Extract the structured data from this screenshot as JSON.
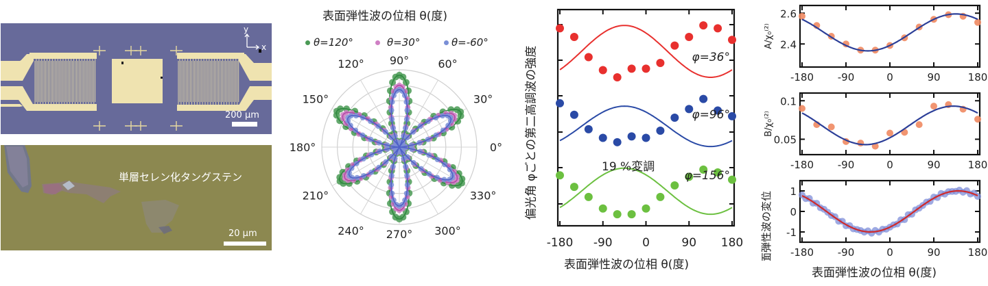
{
  "panels": {
    "device_photo": {
      "axes_labels": {
        "y": "y",
        "x": "x"
      },
      "scale_bar": "200 μm"
    },
    "flake_photo": {
      "material_label": "単層セレン化タングステン",
      "scale_bar": "20 μm"
    }
  },
  "colors": {
    "green": "#4a9a55",
    "pink": "#cf7fc4",
    "blue_dot": "#7a8fd6",
    "red": "#e8302e",
    "navy": "#2a4aa6",
    "lime": "#6cc040",
    "salmon": "#f08a62",
    "fit_blue": "#2c3f98",
    "fit_red": "#d02a2a"
  },
  "chart_data": [
    {
      "type": "polar",
      "title": "表面弾性波の位相 θ(度)",
      "legend": [
        {
          "label": "θ=120°",
          "color": "#4a9a55"
        },
        {
          "label": "θ=30°",
          "color": "#cf7fc4"
        },
        {
          "label": "θ=-60°",
          "color": "#7a8fd6"
        }
      ],
      "angle_ticks": [
        "0°",
        "30°",
        "60°",
        "90°",
        "120°",
        "150°",
        "180°",
        "210°",
        "240°",
        "270°",
        "300°",
        "330°"
      ],
      "lobe_directions_deg": [
        90,
        150,
        210,
        270,
        330,
        30
      ],
      "series_amplitude": [
        {
          "name": "θ=120°",
          "lobes": [
            1.0,
            1.0,
            0.95,
            1.0,
            1.0,
            0.98
          ]
        },
        {
          "name": "θ=30°",
          "lobes": [
            0.86,
            0.9,
            0.87,
            0.88,
            0.92,
            0.88
          ]
        },
        {
          "name": "θ=-60°",
          "lobes": [
            0.8,
            0.82,
            0.8,
            0.82,
            0.85,
            0.82
          ]
        }
      ],
      "radial_rings": 5
    },
    {
      "type": "scatter",
      "ylabel": "偏光角 φごとの第二高調波の強度",
      "xlabel": "表面弾性波の位相 θ(度)",
      "xlim": [
        -180,
        180
      ],
      "xticks": [
        "-180",
        "-90",
        "0",
        "90",
        "180"
      ],
      "annotation": "19 %変調",
      "x": [
        -180,
        -150,
        -120,
        -90,
        -60,
        -30,
        0,
        30,
        60,
        90,
        120,
        150,
        180
      ],
      "series": [
        {
          "name": "φ=36°",
          "label": "φ=36°",
          "color": "#e8302e",
          "values": [
            0.92,
            0.86,
            0.72,
            0.63,
            0.58,
            0.64,
            0.64,
            0.68,
            0.8,
            0.86,
            0.94,
            0.92,
            0.84
          ],
          "fit_offset": 0.76,
          "fit_amp": 0.18,
          "fit_phase": -45
        },
        {
          "name": "φ=96°",
          "label": "φ=96°",
          "color": "#2a4aa6",
          "values": [
            0.4,
            0.32,
            0.22,
            0.16,
            0.13,
            0.17,
            0.16,
            0.21,
            0.3,
            0.36,
            0.43,
            0.35,
            0.31
          ],
          "fit_offset": 0.24,
          "fit_amp": 0.14,
          "fit_phase": -45
        },
        {
          "name": "φ=156°",
          "label": "φ=156°",
          "color": "#6cc040",
          "values": [
            -0.1,
            -0.18,
            -0.25,
            -0.33,
            -0.37,
            -0.37,
            -0.33,
            -0.25,
            -0.17,
            -0.11,
            -0.06,
            -0.08,
            -0.13
          ],
          "fit_offset": -0.21,
          "fit_amp": 0.16,
          "fit_phase": -45
        }
      ],
      "ylim": [
        -0.45,
        1.05
      ]
    },
    {
      "type": "scatter",
      "ylabel": "A/χ₀⁽²⁾",
      "xlim": [
        -180,
        180
      ],
      "ylim": [
        2.25,
        2.65
      ],
      "yticks": [
        "2.4",
        "2.6"
      ],
      "xticks": [
        "-180",
        "-90",
        "0",
        "90",
        "180"
      ],
      "x": [
        -180,
        -150,
        -120,
        -90,
        -60,
        -30,
        0,
        30,
        60,
        90,
        120,
        150,
        180
      ],
      "values": [
        2.58,
        2.52,
        2.45,
        2.4,
        2.36,
        2.36,
        2.39,
        2.44,
        2.51,
        2.56,
        2.59,
        2.58,
        2.54
      ],
      "fit": {
        "offset": 2.475,
        "amp": 0.12,
        "phase_deg": -45
      }
    },
    {
      "type": "scatter",
      "ylabel": "B/χ₀⁽²⁾",
      "xlim": [
        -180,
        180
      ],
      "ylim": [
        0.03,
        0.11
      ],
      "yticks": [
        "0.05",
        "0.1"
      ],
      "xticks": [
        "-180",
        "-90",
        "0",
        "90",
        "180"
      ],
      "x": [
        -180,
        -150,
        -120,
        -90,
        -60,
        -30,
        0,
        30,
        60,
        90,
        120,
        150,
        180
      ],
      "values": [
        0.09,
        0.069,
        0.066,
        0.047,
        0.045,
        0.041,
        0.058,
        0.059,
        0.069,
        0.093,
        0.095,
        0.089,
        0.076
      ],
      "fit": {
        "offset": 0.068,
        "amp": 0.025,
        "phase_deg": -50
      }
    },
    {
      "type": "scatter",
      "ylabel": "表面弾性波の変位",
      "xlabel": "表面弾性波の位相 θ(度)",
      "xlim": [
        -180,
        180
      ],
      "ylim": [
        -1.5,
        1.5
      ],
      "yticks": [
        "-1",
        "0",
        "1"
      ],
      "xticks": [
        "-180",
        "-90",
        "0",
        "90",
        "180"
      ],
      "fit": {
        "offset": 0,
        "amp": 1,
        "phase_deg": -40
      }
    }
  ]
}
